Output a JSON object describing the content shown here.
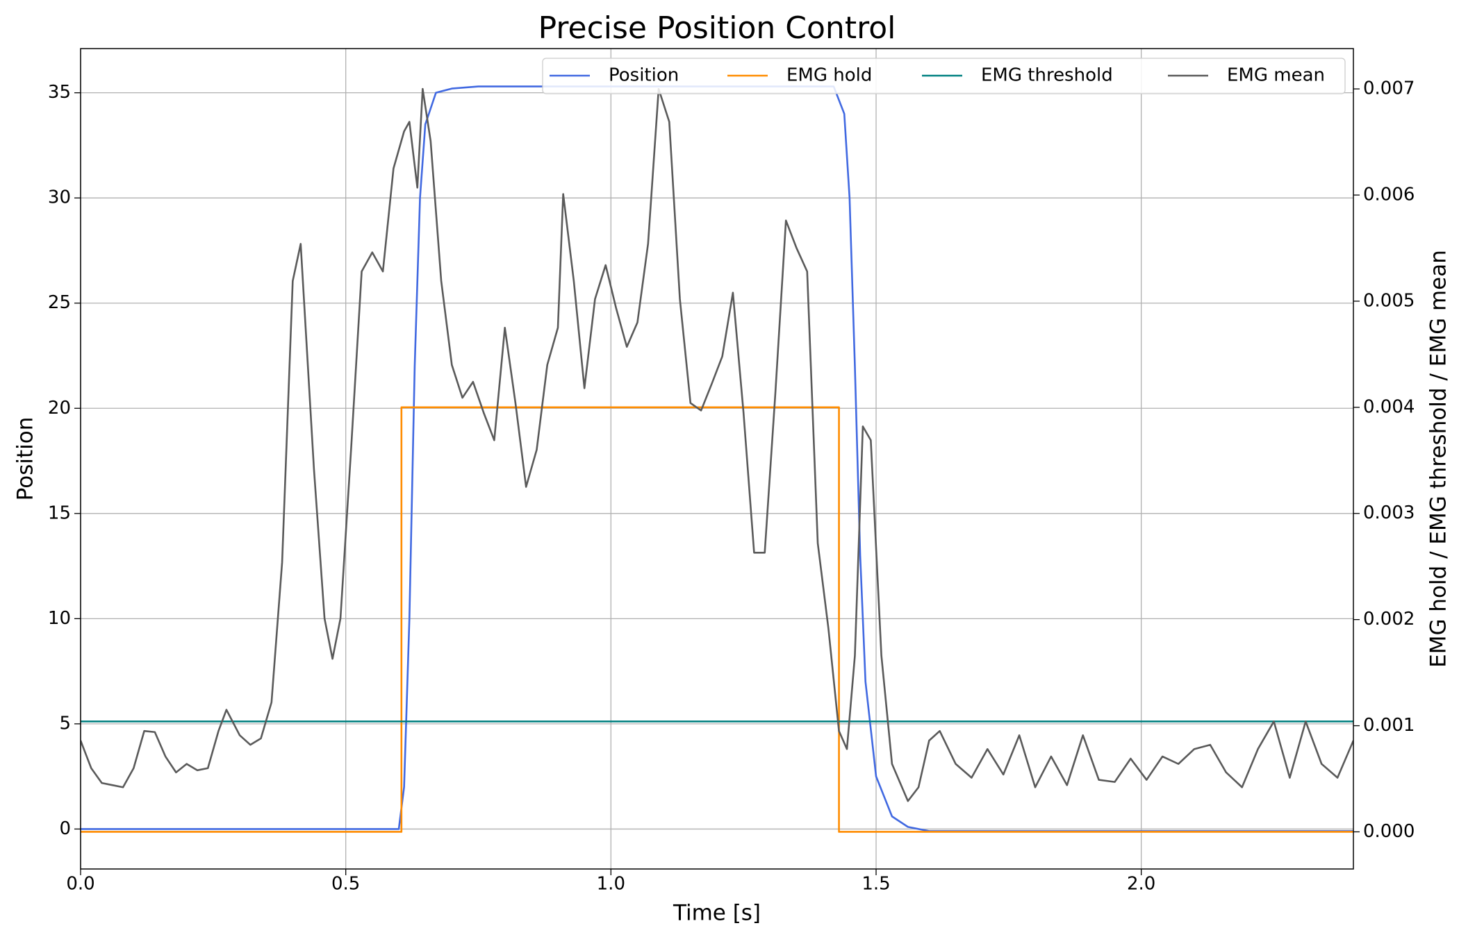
{
  "chart_data": {
    "type": "line",
    "title": "Precise Position Control",
    "xlabel": "Time [s]",
    "ylabel": "Position",
    "y2label": "EMG hold / EMG threshold / EMG mean",
    "xlim": [
      0,
      2.4
    ],
    "ylim": [
      -1.9,
      37.1
    ],
    "y2lim": [
      -0.00035,
      0.00738
    ],
    "xticks": [
      {
        "value": 0,
        "label": "0.0"
      },
      0.5,
      {
        "value": 1,
        "label": "1.0"
      },
      1.5,
      {
        "value": 2,
        "label": "2.0"
      }
    ],
    "yticks": [
      0,
      5,
      10,
      15,
      20,
      25,
      30,
      35
    ],
    "y2ticks": [
      {
        "value": 0,
        "label": "0.000"
      },
      {
        "value": 0.001,
        "label": "0.001"
      },
      {
        "value": 0.002,
        "label": "0.002"
      },
      {
        "value": 0.003,
        "label": "0.003"
      },
      {
        "value": 0.004,
        "label": "0.004"
      },
      {
        "value": 0.005,
        "label": "0.005"
      },
      {
        "value": 0.006,
        "label": "0.006"
      },
      {
        "value": 0.007,
        "label": "0.007"
      }
    ],
    "ylabel_color": "#4169e1",
    "grid": true,
    "legend": "upper right",
    "series": [
      {
        "name": "Position",
        "color": "#4169e1",
        "axis": "y",
        "x": [
          0,
          0.6,
          0.61,
          0.62,
          0.63,
          0.64,
          0.65,
          0.67,
          0.7,
          0.75,
          1.0,
          1.42,
          1.44,
          1.45,
          1.46,
          1.47,
          1.48,
          1.5,
          1.53,
          1.56,
          1.6,
          2.4
        ],
        "values": [
          0,
          0,
          2,
          10,
          22,
          30,
          33.5,
          35,
          35.2,
          35.3,
          35.3,
          35.3,
          34,
          30,
          22,
          13,
          7,
          2.5,
          0.6,
          0.1,
          -0.1,
          -0.1
        ]
      },
      {
        "name": "EMG hold",
        "color": "#ff8c00",
        "axis": "y2",
        "x": [
          0,
          0.605,
          0.605,
          1.43,
          1.43,
          2.4
        ],
        "values": [
          0,
          0,
          0.004,
          0.004,
          0,
          0
        ]
      },
      {
        "name": "EMG threshold",
        "color": "#008080",
        "axis": "y2",
        "x": [
          0,
          2.4
        ],
        "values": [
          0.00104,
          0.00104
        ]
      },
      {
        "name": "EMG mean",
        "color": "#5a5a5a",
        "axis": "y2",
        "x": [
          0,
          0.02,
          0.04,
          0.06,
          0.08,
          0.1,
          0.12,
          0.14,
          0.16,
          0.18,
          0.2,
          0.22,
          0.24,
          0.26,
          0.275,
          0.3,
          0.32,
          0.34,
          0.36,
          0.38,
          0.4,
          0.415,
          0.44,
          0.46,
          0.475,
          0.49,
          0.51,
          0.53,
          0.55,
          0.57,
          0.59,
          0.61,
          0.62,
          0.635,
          0.645,
          0.66,
          0.68,
          0.7,
          0.72,
          0.74,
          0.76,
          0.78,
          0.8,
          0.82,
          0.84,
          0.86,
          0.88,
          0.9,
          0.91,
          0.93,
          0.95,
          0.97,
          0.99,
          1.01,
          1.03,
          1.05,
          1.07,
          1.09,
          1.11,
          1.13,
          1.15,
          1.17,
          1.19,
          1.21,
          1.23,
          1.25,
          1.27,
          1.29,
          1.31,
          1.33,
          1.35,
          1.37,
          1.39,
          1.41,
          1.43,
          1.445,
          1.46,
          1.475,
          1.49,
          1.51,
          1.53,
          1.56,
          1.58,
          1.6,
          1.62,
          1.65,
          1.68,
          1.71,
          1.74,
          1.77,
          1.8,
          1.83,
          1.86,
          1.89,
          1.92,
          1.95,
          1.98,
          2.01,
          2.04,
          2.07,
          2.1,
          2.13,
          2.16,
          2.19,
          2.22,
          2.25,
          2.28,
          2.31,
          2.34,
          2.37,
          2.4
        ],
        "values": [
          0.00086,
          0.0006,
          0.00046,
          0.00044,
          0.00042,
          0.0006,
          0.00095,
          0.00094,
          0.00071,
          0.00056,
          0.00064,
          0.00058,
          0.0006,
          0.00095,
          0.00115,
          0.00091,
          0.00082,
          0.00088,
          0.00122,
          0.00254,
          0.00519,
          0.00554,
          0.00342,
          0.00201,
          0.00163,
          0.00201,
          0.0036,
          0.00528,
          0.00546,
          0.00528,
          0.00625,
          0.0066,
          0.00669,
          0.00607,
          0.007,
          0.00651,
          0.00519,
          0.0044,
          0.00409,
          0.00424,
          0.00395,
          0.00369,
          0.00475,
          0.00404,
          0.00325,
          0.0036,
          0.0044,
          0.00475,
          0.00601,
          0.00519,
          0.00418,
          0.00502,
          0.00534,
          0.00493,
          0.00457,
          0.0048,
          0.00554,
          0.007,
          0.00669,
          0.00502,
          0.00404,
          0.00397,
          0.00422,
          0.00448,
          0.00508,
          0.00395,
          0.00263,
          0.00263,
          0.00413,
          0.00576,
          0.0055,
          0.00528,
          0.00272,
          0.00192,
          0.00095,
          0.00078,
          0.00166,
          0.00382,
          0.00369,
          0.00166,
          0.00064,
          0.00029,
          0.00042,
          0.00086,
          0.00095,
          0.00064,
          0.00051,
          0.00078,
          0.00054,
          0.00091,
          0.00042,
          0.00071,
          0.00044,
          0.00091,
          0.00049,
          0.00047,
          0.00069,
          0.00049,
          0.00071,
          0.00064,
          0.00078,
          0.00082,
          0.00056,
          0.00042,
          0.00078,
          0.00104,
          0.00051,
          0.00104,
          0.00064,
          0.00051,
          0.00086
        ]
      }
    ]
  }
}
